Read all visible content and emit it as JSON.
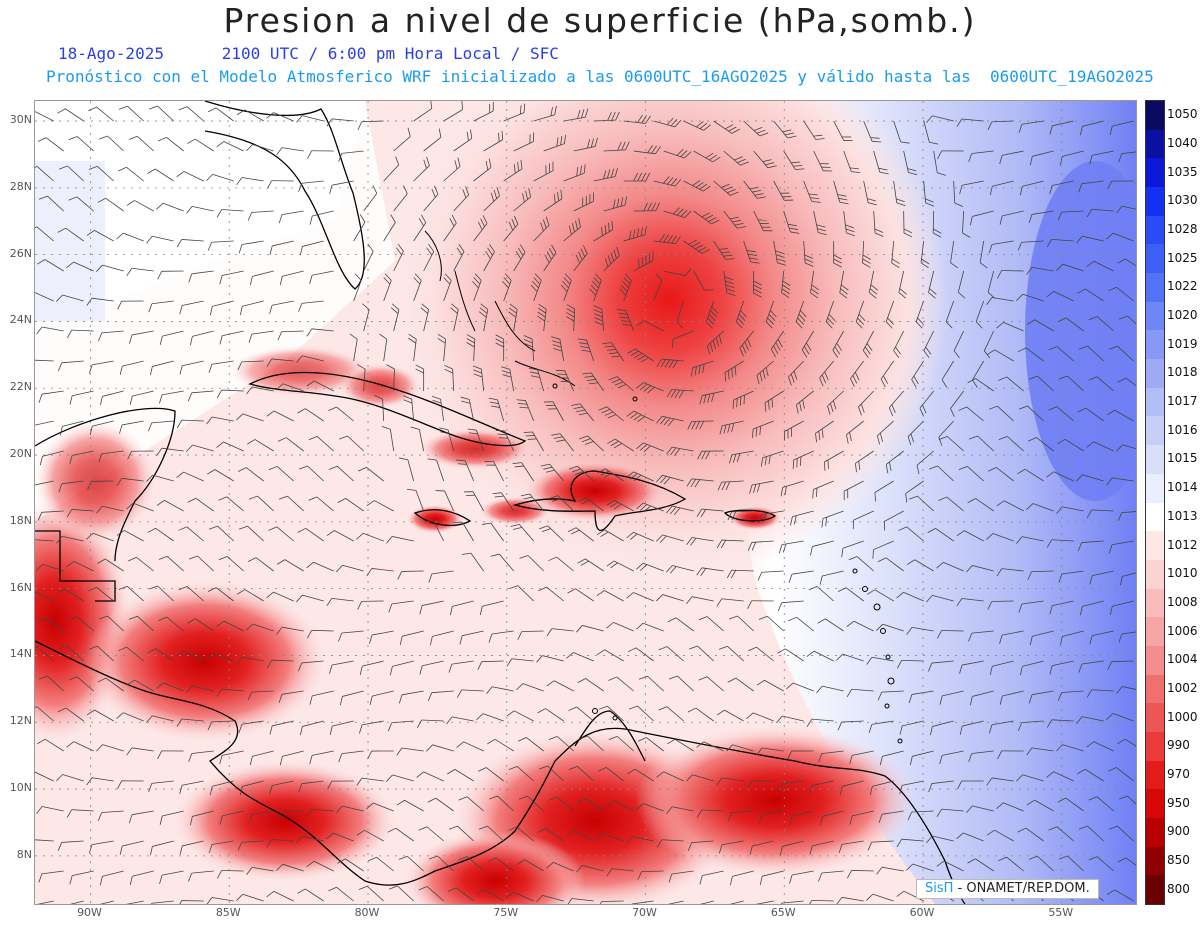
{
  "title": "Presion a nivel de superficie (hPa,somb.)",
  "date": "18-Ago-2025",
  "valid_time": "2100 UTC / 6:00 pm Hora Local / SFC",
  "model_info": "Pronóstico con el Modelo Atmosferico WRF inicializado a las 0600UTC_16AGO2025 y válido hasta las  0600UTC_19AGO2025",
  "credit": {
    "logo": "SisΠ",
    "text": " - ONAMET/REP.DOM."
  },
  "lat_labels": [
    "30N",
    "28N",
    "26N",
    "24N",
    "22N",
    "20N",
    "18N",
    "16N",
    "14N",
    "12N",
    "10N",
    "8N"
  ],
  "lon_labels": [
    "90W",
    "85W",
    "80W",
    "75W",
    "70W",
    "65W",
    "60W",
    "55W"
  ],
  "colorbar": {
    "levels": [
      "1050",
      "1040",
      "1035",
      "1030",
      "1028",
      "1025",
      "1022",
      "1020",
      "1019",
      "1018",
      "1017",
      "1016",
      "1015",
      "1014",
      "1013",
      "1012",
      "1010",
      "1008",
      "1006",
      "1004",
      "1002",
      "1000",
      "990",
      "970",
      "950",
      "900",
      "850",
      "800"
    ],
    "colors": [
      "#0a0a60",
      "#0a10a0",
      "#0b18d8",
      "#1430f0",
      "#2a4cf4",
      "#3d5ff5",
      "#5472f5",
      "#6f86f6",
      "#8898f5",
      "#9eaaf6",
      "#b3bdf6",
      "#c7cff8",
      "#dadff9",
      "#ebeefc",
      "#ffffff",
      "#fde7e7",
      "#fbd3d3",
      "#f8bcbc",
      "#f6a5a5",
      "#f38c8c",
      "#f07070",
      "#ed5656",
      "#ea3a3a",
      "#e31b1b",
      "#d80808",
      "#b80000",
      "#900000",
      "#6a0000"
    ]
  },
  "features": {
    "storm_center": {
      "lat": 24.6,
      "lon": -69.2
    },
    "high_pressure_region": "east",
    "barb_color": "#444444"
  }
}
